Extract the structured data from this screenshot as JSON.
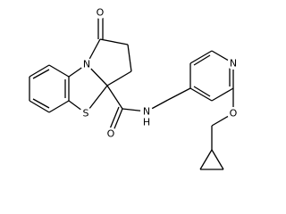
{
  "atoms": [
    "O",
    "N",
    "S",
    "O",
    "N",
    "H",
    "N",
    "O"
  ]
}
